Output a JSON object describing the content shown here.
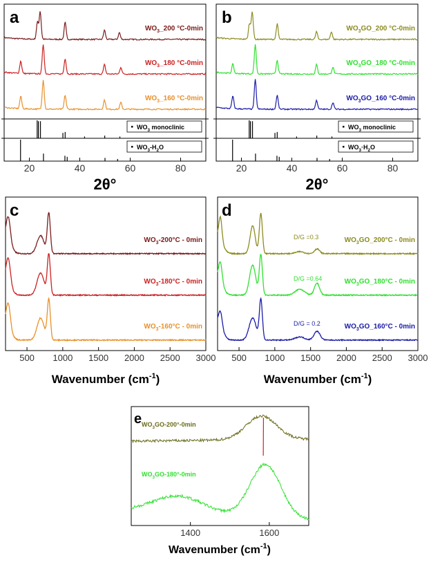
{
  "chart_data": [
    {
      "panel": "a",
      "type": "line",
      "xlabel": "2θ°",
      "xlim": [
        10,
        90
      ],
      "xticks": [
        "20",
        "40",
        "60",
        "80"
      ],
      "series": [
        {
          "name": "WO3_200 °C-0min",
          "label_main": "WO",
          "label_sub": "3",
          "label_rest": "_200 °C-0min",
          "color": "#7a1a1a",
          "peaks": [
            [
              23.2,
              0.55
            ],
            [
              24.3,
              0.9
            ],
            [
              34.2,
              0.55
            ],
            [
              49.8,
              0.3
            ],
            [
              55.7,
              0.22
            ]
          ]
        },
        {
          "name": "WO3_180 °C-0min",
          "label_main": "WO",
          "label_sub": "3",
          "label_rest": "_180 °C-0min",
          "color": "#cc1f1f",
          "peaks": [
            [
              16.6,
              0.4
            ],
            [
              25.5,
              0.95
            ],
            [
              34.2,
              0.5
            ],
            [
              49.8,
              0.3
            ],
            [
              56.3,
              0.22
            ]
          ]
        },
        {
          "name": "WO3_160 °C-0min",
          "label_main": "WO",
          "label_sub": "3",
          "label_rest": "_160 °C-0min",
          "color": "#e8902a",
          "peaks": [
            [
              16.6,
              0.4
            ],
            [
              25.5,
              0.95
            ],
            [
              34.2,
              0.45
            ],
            [
              49.8,
              0.3
            ],
            [
              56.3,
              0.22
            ]
          ]
        }
      ],
      "references": [
        {
          "name": "WO3 monoclinic",
          "label_main": "WO",
          "label_sub": "3",
          "label_rest": " monoclinic",
          "lines": [
            [
              23.1,
              1.0
            ],
            [
              23.6,
              0.95
            ],
            [
              24.4,
              0.95
            ],
            [
              33.3,
              0.3
            ],
            [
              34.2,
              0.35
            ],
            [
              41.9,
              0.1
            ],
            [
              49.9,
              0.15
            ],
            [
              55.9,
              0.1
            ]
          ]
        },
        {
          "name": "WO3·H2O",
          "label_main": "WO",
          "label_sub": "3",
          "label_rest": "-H",
          "label_sub2": "2",
          "label_rest2": "O",
          "lines": [
            [
              16.5,
              1.0
            ],
            [
              25.6,
              0.35
            ],
            [
              34.1,
              0.25
            ],
            [
              35.0,
              0.2
            ],
            [
              50.0,
              0.15
            ],
            [
              55.0,
              0.1
            ]
          ]
        }
      ]
    },
    {
      "panel": "b",
      "type": "line",
      "xlabel": "2θ°",
      "xlim": [
        10,
        90
      ],
      "xticks": [
        "20",
        "40",
        "60",
        "80"
      ],
      "series": [
        {
          "name": "WO3GO_200 °C-0min",
          "label_main": "WO",
          "label_sub": "3",
          "label_rest": "GO_200 °C-0min",
          "color": "#8b8b1f",
          "peaks": [
            [
              23.2,
              0.5
            ],
            [
              24.3,
              0.9
            ],
            [
              34.2,
              0.5
            ],
            [
              49.8,
              0.25
            ],
            [
              55.7,
              0.25
            ]
          ]
        },
        {
          "name": "WO3GO_180 °C-0min",
          "label_main": "WO",
          "label_sub": "3",
          "label_rest": "GO_180 °C-0min",
          "color": "#2ee02e",
          "peaks": [
            [
              16.6,
              0.3
            ],
            [
              25.5,
              0.95
            ],
            [
              34.2,
              0.45
            ],
            [
              49.8,
              0.3
            ],
            [
              56.3,
              0.22
            ]
          ]
        },
        {
          "name": "WO3GO_160 °C-0min",
          "label_main": "WO",
          "label_sub": "3",
          "label_rest": "GO_160 °C-0min",
          "color": "#1a1aa8",
          "peaks": [
            [
              16.6,
              0.4
            ],
            [
              25.5,
              0.95
            ],
            [
              34.2,
              0.45
            ],
            [
              49.8,
              0.3
            ],
            [
              56.3,
              0.22
            ]
          ]
        }
      ],
      "references": [
        {
          "name": "WO3 monoclinic",
          "label_main": "WO",
          "label_sub": "3",
          "label_rest": " monoclinic",
          "lines": [
            [
              23.1,
              1.0
            ],
            [
              23.6,
              0.95
            ],
            [
              24.4,
              0.95
            ],
            [
              33.3,
              0.3
            ],
            [
              34.2,
              0.35
            ],
            [
              41.9,
              0.1
            ],
            [
              49.9,
              0.15
            ],
            [
              55.9,
              0.1
            ]
          ]
        },
        {
          "name": "WO3·H2O",
          "label_main": "WO",
          "label_sub": "3",
          "label_rest": "·H",
          "label_sub2": "2",
          "label_rest2": "O",
          "lines": [
            [
              16.5,
              1.0
            ],
            [
              25.6,
              0.35
            ],
            [
              34.1,
              0.25
            ],
            [
              35.0,
              0.2
            ],
            [
              50.0,
              0.15
            ],
            [
              55.0,
              0.1
            ]
          ]
        }
      ]
    },
    {
      "panel": "c",
      "type": "line",
      "xlabel": "Wavenumber (cm",
      "xlabel_sup": "-1",
      "xlabel_end": ")",
      "xlim": [
        200,
        3000
      ],
      "xticks": [
        "500",
        "1000",
        "1500",
        "2000",
        "2500",
        "3000"
      ],
      "series": [
        {
          "name": "WO3-200°C - 0min",
          "label_main": "WO",
          "label_sub": "3",
          "label_rest": "-200°C - 0min",
          "color": "#7a1a1a",
          "peaks": [
            [
              240,
              0.55,
              40
            ],
            [
              690,
              0.45,
              70
            ],
            [
              805,
              1.0,
              30
            ]
          ]
        },
        {
          "name": "WO3-180°C - 0min",
          "label_main": "WO",
          "label_sub": "3",
          "label_rest": "-180°C - 0min",
          "color": "#cc1f1f",
          "peaks": [
            [
              240,
              0.55,
              40
            ],
            [
              690,
              0.55,
              70
            ],
            [
              805,
              1.0,
              30
            ]
          ]
        },
        {
          "name": "WO3-160°C - 0min",
          "label_main": "WO",
          "label_sub": "3",
          "label_rest": "-160°C - 0min",
          "color": "#e8902a",
          "peaks": [
            [
              240,
              0.55,
              40
            ],
            [
              690,
              0.55,
              70
            ],
            [
              805,
              1.0,
              30
            ]
          ]
        }
      ]
    },
    {
      "panel": "d",
      "type": "line",
      "xlabel": "Wavenumber (cm",
      "xlabel_sup": "-1",
      "xlabel_end": ")",
      "xlim": [
        200,
        3000
      ],
      "xticks": [
        "500",
        "1000",
        "1500",
        "2000",
        "2500",
        "3000"
      ],
      "series": [
        {
          "name": "WO3GO_200°C - 0min",
          "label_main": "WO",
          "label_sub": "3",
          "label_rest": "GO_200°C - 0min",
          "color": "#8b8b1f",
          "ratio": "D/G =0.3",
          "peaks": [
            [
              240,
              0.55,
              30
            ],
            [
              690,
              0.7,
              50
            ],
            [
              805,
              1.0,
              30
            ],
            [
              1350,
              0.05,
              80
            ],
            [
              1590,
              0.12,
              50
            ]
          ]
        },
        {
          "name": "WO3GO_180°C - 0min",
          "label_main": "WO",
          "label_sub": "3",
          "label_rest": "GO_180°C - 0min",
          "color": "#2ee02e",
          "ratio": "D/G =0.64",
          "peaks": [
            [
              240,
              0.45,
              35
            ],
            [
              690,
              0.75,
              60
            ],
            [
              805,
              1.0,
              30
            ],
            [
              1350,
              0.15,
              90
            ],
            [
              1590,
              0.3,
              50
            ]
          ]
        },
        {
          "name": "WO3GO_160°C - 0min",
          "label_main": "WO",
          "label_sub": "3",
          "label_rest": "GO_160°C - 0min",
          "color": "#1a1aa8",
          "ratio": "D/G = 0.2",
          "peaks": [
            [
              240,
              0.35,
              35
            ],
            [
              690,
              0.55,
              70
            ],
            [
              805,
              1.0,
              30
            ],
            [
              1350,
              0.08,
              90
            ],
            [
              1590,
              0.22,
              60
            ]
          ]
        }
      ]
    },
    {
      "panel": "e",
      "type": "line",
      "xlabel": "Wavenumber (cm",
      "xlabel_sup": "-1",
      "xlabel_end": ")",
      "xlim": [
        1250,
        1700
      ],
      "xticks": [
        "1400",
        "1600"
      ],
      "series": [
        {
          "name": "WO3GO-200°-0min",
          "label_main": "WO",
          "label_sub": "3",
          "label_rest": "GO-200°-0min",
          "color": "#6b6b1a",
          "peak_position": 1580
        },
        {
          "name": "WO3GO-180°-0min",
          "label_main": "WO",
          "label_sub": "3",
          "label_rest": "GO-180°-0min",
          "color": "#2ee02e",
          "peak_position": 1590
        }
      ]
    }
  ]
}
